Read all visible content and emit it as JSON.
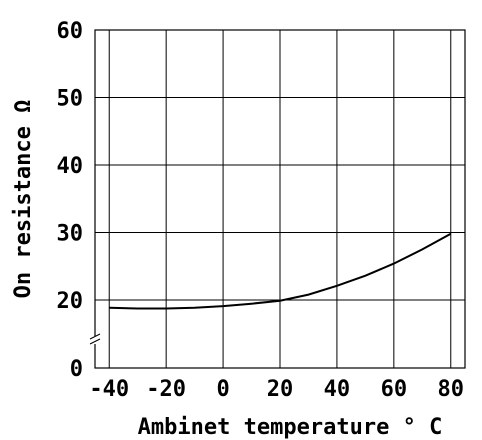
{
  "chart_data": {
    "type": "line",
    "xlabel": "Ambinet temperature ° C",
    "ylabel": "On resistance Ω",
    "xlim": [
      -45,
      85
    ],
    "ylim": [
      0,
      60
    ],
    "y_axis_break_below": 20,
    "grid": true,
    "x_ticks": [
      -40,
      -20,
      0,
      20,
      40,
      60,
      80
    ],
    "y_ticks": [
      0,
      20,
      30,
      40,
      50,
      60
    ],
    "x_tick_labels": [
      "-40",
      "-20",
      "0",
      "20",
      "40",
      "60",
      "80"
    ],
    "y_tick_labels": [
      "0",
      "20",
      "30",
      "40",
      "50",
      "60"
    ],
    "series": [
      {
        "x": [
          -40,
          -30,
          -20,
          -10,
          0,
          10,
          20,
          30,
          40,
          50,
          60,
          70,
          80
        ],
        "y": [
          17.7,
          17.5,
          17.5,
          17.7,
          18.2,
          18.9,
          19.8,
          20.8,
          22.1,
          23.6,
          25.4,
          27.5,
          29.8
        ]
      }
    ]
  }
}
